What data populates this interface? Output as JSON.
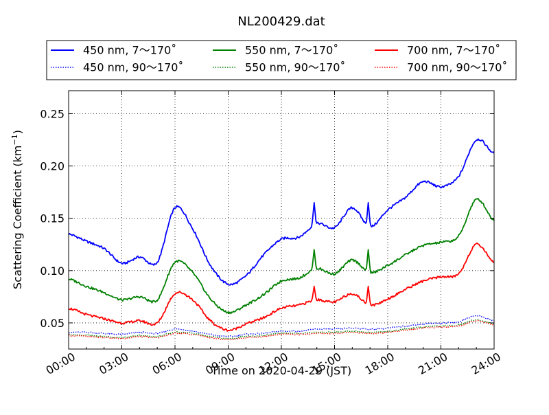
{
  "chart_data": {
    "type": "line",
    "title": "NL200429.dat",
    "xlabel": "Time on 2020-04-29 (JST)",
    "ylabel": "Scattering Coefficient (km",
    "ylabel_sup": "−1",
    "ylabel_close": ")",
    "xlim": [
      "00:00",
      "24:00"
    ],
    "ylim": [
      0.025,
      0.272
    ],
    "x_ticks": [
      "00:00",
      "03:00",
      "06:00",
      "09:00",
      "12:00",
      "15:00",
      "18:00",
      "21:00",
      "24:00"
    ],
    "y_ticks": [
      "0.05",
      "0.10",
      "0.15",
      "0.20",
      "0.25"
    ],
    "grid": true,
    "legend_position": "top",
    "x_hours": [
      0,
      1,
      2,
      3,
      4,
      5,
      6,
      7,
      8,
      9,
      10,
      11,
      12,
      13,
      14,
      15,
      16,
      17,
      18,
      19,
      20,
      21,
      22,
      23,
      24
    ],
    "series": [
      {
        "name": "450 nm, 7～170˚",
        "color": "#0000ff",
        "style": "solid",
        "values": [
          0.135,
          0.128,
          0.121,
          0.107,
          0.113,
          0.108,
          0.16,
          0.14,
          0.105,
          0.087,
          0.095,
          0.115,
          0.13,
          0.132,
          0.145,
          0.141,
          0.16,
          0.142,
          0.158,
          0.17,
          0.185,
          0.18,
          0.19,
          0.225,
          0.212
        ]
      },
      {
        "name": "450 nm, 90～170˚",
        "color": "#0000ff",
        "style": "dotted",
        "values": [
          0.041,
          0.041,
          0.04,
          0.039,
          0.041,
          0.04,
          0.044,
          0.042,
          0.039,
          0.037,
          0.039,
          0.04,
          0.042,
          0.042,
          0.044,
          0.044,
          0.045,
          0.044,
          0.045,
          0.047,
          0.049,
          0.05,
          0.051,
          0.057,
          0.052
        ]
      },
      {
        "name": "550 nm, 7～170˚",
        "color": "#008000",
        "style": "solid",
        "values": [
          0.092,
          0.085,
          0.079,
          0.072,
          0.075,
          0.072,
          0.108,
          0.098,
          0.073,
          0.06,
          0.067,
          0.077,
          0.09,
          0.093,
          0.102,
          0.097,
          0.11,
          0.098,
          0.105,
          0.115,
          0.124,
          0.127,
          0.133,
          0.168,
          0.148
        ]
      },
      {
        "name": "550 nm, 90～170˚",
        "color": "#008000",
        "style": "dotted",
        "values": [
          0.039,
          0.038,
          0.037,
          0.036,
          0.038,
          0.037,
          0.041,
          0.04,
          0.037,
          0.035,
          0.037,
          0.038,
          0.04,
          0.04,
          0.041,
          0.041,
          0.042,
          0.041,
          0.042,
          0.044,
          0.046,
          0.047,
          0.048,
          0.053,
          0.049
        ]
      },
      {
        "name": "700 nm, 7～170˚",
        "color": "#ff0000",
        "style": "solid",
        "values": [
          0.064,
          0.058,
          0.054,
          0.05,
          0.052,
          0.05,
          0.078,
          0.072,
          0.052,
          0.043,
          0.049,
          0.055,
          0.064,
          0.067,
          0.072,
          0.07,
          0.078,
          0.067,
          0.073,
          0.082,
          0.09,
          0.094,
          0.097,
          0.125,
          0.108
        ]
      },
      {
        "name": "700 nm, 90～170˚",
        "color": "#ff0000",
        "style": "dotted",
        "values": [
          0.038,
          0.037,
          0.036,
          0.035,
          0.037,
          0.036,
          0.04,
          0.039,
          0.036,
          0.034,
          0.036,
          0.037,
          0.039,
          0.039,
          0.04,
          0.04,
          0.041,
          0.04,
          0.041,
          0.043,
          0.045,
          0.046,
          0.047,
          0.052,
          0.048
        ]
      }
    ],
    "spikes": [
      {
        "series": 0,
        "hour": 13.85,
        "peak": 0.165
      },
      {
        "series": 0,
        "hour": 16.9,
        "peak": 0.165
      },
      {
        "series": 2,
        "hour": 13.85,
        "peak": 0.12
      },
      {
        "series": 2,
        "hour": 16.9,
        "peak": 0.12
      },
      {
        "series": 4,
        "hour": 13.85,
        "peak": 0.085
      },
      {
        "series": 4,
        "hour": 16.9,
        "peak": 0.085
      }
    ]
  }
}
